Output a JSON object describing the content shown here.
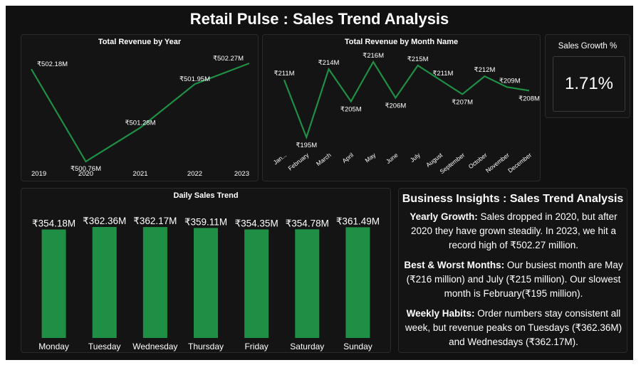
{
  "title": "Retail Pulse : Sales Trend Analysis",
  "colors": {
    "accent": "#1e8f45",
    "background": "#111111",
    "text": "#ffffff"
  },
  "kpi": {
    "label": "Sales Growth %",
    "value": "1.71%"
  },
  "insights": {
    "heading": "Business Insights : Sales Trend Analysis",
    "items": [
      {
        "label": "Yearly Growth:",
        "text": " Sales dropped in 2020, but after 2020 they have grown steadily. In 2023, we hit a record high of ₹502.27 million."
      },
      {
        "label": "Best & Worst Months:",
        "text": " Our busiest month are May (₹216 million) and July (₹215 million). Our slowest month is February(₹195 million)."
      },
      {
        "label": "Weekly Habits:",
        "text": " Order numbers stay consistent all week, but revenue peaks on Tuesdays (₹362.36M) and Wednesdays (₹362.17M)."
      }
    ]
  },
  "chart_data": [
    {
      "type": "line",
      "title": "Total Revenue by Year",
      "categories": [
        "2019",
        "2020",
        "2021",
        "2022",
        "2023"
      ],
      "values": [
        502.18,
        500.76,
        501.28,
        501.95,
        502.27
      ],
      "labels": [
        "₹502.18M",
        "₹500.76M",
        "₹501.28M",
        "₹501.95M",
        "₹502.27M"
      ]
    },
    {
      "type": "line",
      "title": "Total Revenue by Month Name",
      "categories": [
        "Jan...",
        "February",
        "March",
        "April",
        "May",
        "June",
        "July",
        "August",
        "September",
        "October",
        "November",
        "December"
      ],
      "values": [
        211,
        195,
        214,
        205,
        216,
        206,
        215,
        211,
        207,
        212,
        209,
        208
      ],
      "labels": [
        "₹211M",
        "₹195M",
        "₹214M",
        "₹205M",
        "₹216M",
        "₹206M",
        "₹215M",
        "₹211M",
        "₹207M",
        "₹212M",
        "₹209M",
        "₹208M"
      ]
    },
    {
      "type": "bar",
      "title": "Daily Sales Trend",
      "categories": [
        "Monday",
        "Tuesday",
        "Wednesday",
        "Thursday",
        "Friday",
        "Saturday",
        "Sunday"
      ],
      "values": [
        354.18,
        362.36,
        362.17,
        359.11,
        354.35,
        354.78,
        361.49
      ],
      "labels": [
        "₹354.18M",
        "₹362.36M",
        "₹362.17M",
        "₹359.11M",
        "₹354.35M",
        "₹354.78M",
        "₹361.49M"
      ]
    }
  ]
}
